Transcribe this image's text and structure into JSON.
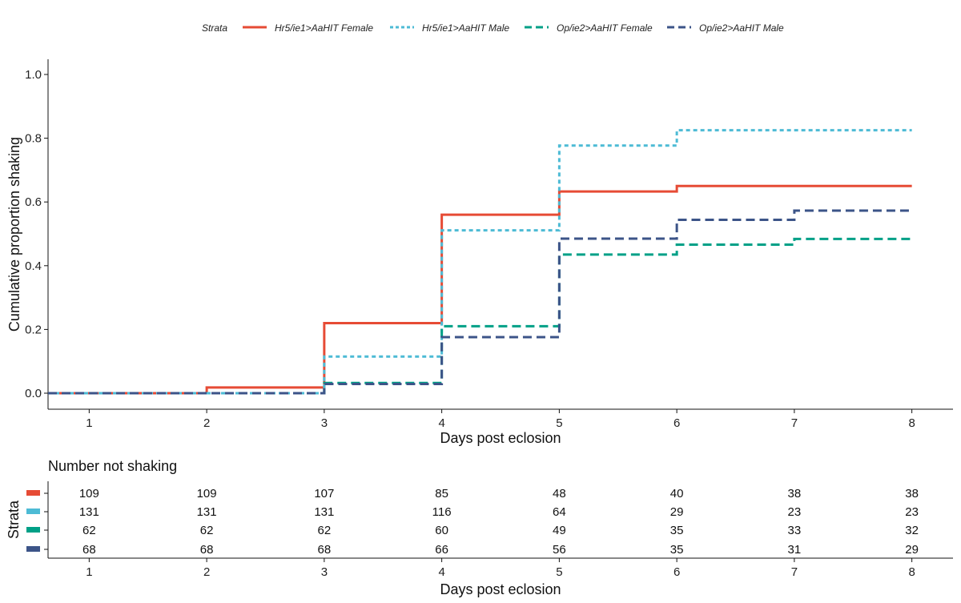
{
  "chart_data": {
    "type": "line",
    "step": true,
    "legend": {
      "title": "Strata",
      "placement": "top"
    },
    "xlabel": "Days post eclosion",
    "ylabel": "Cumulative proportion shaking",
    "xlim": [
      0.65,
      8.35
    ],
    "ylim": [
      -0.05,
      1.05
    ],
    "xticks": [
      1,
      2,
      3,
      4,
      5,
      6,
      7,
      8
    ],
    "yticks": [
      0.0,
      0.2,
      0.4,
      0.6,
      0.8,
      1.0
    ],
    "ytick_labels": [
      "0.0",
      "0.2",
      "0.4",
      "0.6",
      "0.8",
      "1.0"
    ],
    "series": [
      {
        "name": "Hr5/ie1>AaHIT Female",
        "color": "#E64B35",
        "dash": "solid",
        "x": [
          0.65,
          2,
          3,
          4,
          5,
          6,
          8
        ],
        "y": [
          0.0,
          0.018,
          0.22,
          0.56,
          0.633,
          0.65,
          0.65
        ]
      },
      {
        "name": "Hr5/ie1>AaHIT Male",
        "color": "#4DBBD5",
        "dash": "dotted",
        "x": [
          0.65,
          3,
          4,
          5,
          6,
          8
        ],
        "y": [
          0.0,
          0.115,
          0.511,
          0.777,
          0.825,
          0.825
        ]
      },
      {
        "name": "Op/ie2>AaHIT Female",
        "color": "#00A087",
        "dash": "dashed",
        "x": [
          0.65,
          3,
          4,
          5,
          6,
          7,
          8
        ],
        "y": [
          0.0,
          0.032,
          0.21,
          0.435,
          0.466,
          0.484,
          0.484
        ]
      },
      {
        "name": "Op/ie2>AaHIT Male",
        "color": "#3C5488",
        "dash": "dashed",
        "x": [
          0.65,
          3,
          4,
          5,
          6,
          7,
          8
        ],
        "y": [
          0.0,
          0.029,
          0.176,
          0.485,
          0.544,
          0.573,
          0.573
        ]
      }
    ],
    "risk_table": {
      "title": "Number not shaking",
      "ylabel": "Strata",
      "xlabel": "Days post eclosion",
      "rows": [
        {
          "color": "#E64B35",
          "values": [
            "109",
            "109",
            "107",
            "85",
            "48",
            "40",
            "38",
            "38"
          ]
        },
        {
          "color": "#4DBBD5",
          "values": [
            "131",
            "131",
            "131",
            "116",
            "64",
            "29",
            "23",
            "23"
          ]
        },
        {
          "color": "#00A087",
          "values": [
            "62",
            "62",
            "62",
            "60",
            "49",
            "35",
            "33",
            "32"
          ]
        },
        {
          "color": "#3C5488",
          "values": [
            "68",
            "68",
            "68",
            "66",
            "56",
            "35",
            "31",
            "29"
          ]
        }
      ]
    }
  }
}
